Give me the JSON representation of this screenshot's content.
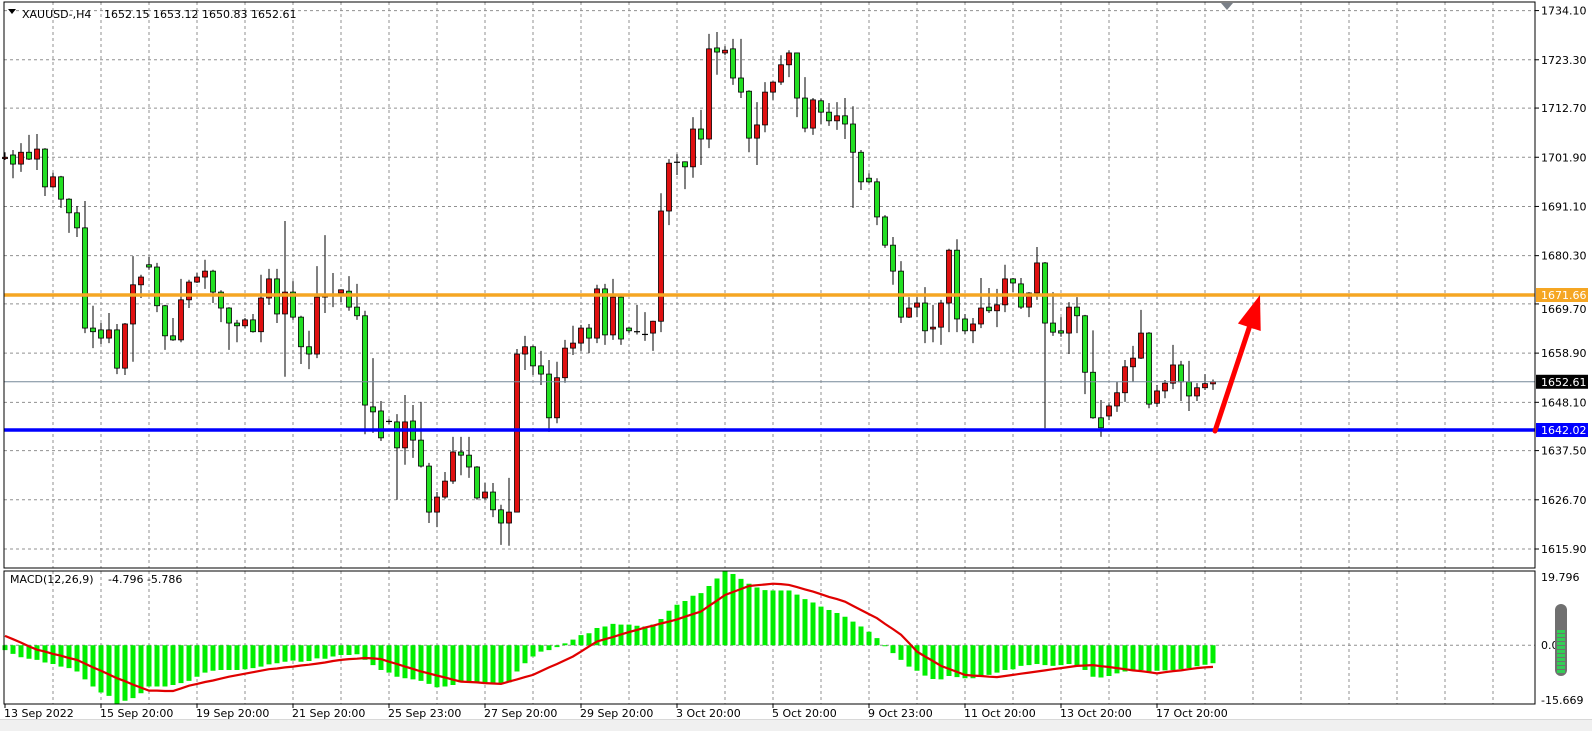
{
  "header": {
    "symbol": "XAUUSD-,H4",
    "ohlc_text": "1652.15 1653.12 1650.83 1652.61",
    "menu_icon": "triangle-down-icon"
  },
  "indicator": {
    "label": "MACD(12,26,9)",
    "values_text": "-4.796 -5.786",
    "axis_labels": [
      "19.796",
      "0.00",
      "-15.669"
    ],
    "range": [
      -15.669,
      19.796
    ]
  },
  "colors": {
    "bull": "#e01010",
    "bear": "#22e022",
    "histogram": "#00ee00",
    "signal": "#e00000",
    "resistance": "#f5a623",
    "support": "#0000ff",
    "bid": "#778899",
    "arrow": "#ff0000"
  },
  "levels": {
    "resistance": {
      "price": 1671.66,
      "label": "1671.66"
    },
    "support": {
      "price": 1642.02,
      "label": "1642.02"
    },
    "bid": {
      "price": 1652.61,
      "label": "1652.61"
    }
  },
  "arrow": {
    "from_price": 1642.02,
    "to_price": 1671.66
  },
  "chart_data": {
    "type": "candlestick",
    "price_ticks": [
      "1734.10",
      "1723.30",
      "1712.70",
      "1701.90",
      "1691.10",
      "1680.30",
      "1669.70",
      "1658.90",
      "1648.10",
      "1637.50",
      "1626.70",
      "1615.90"
    ],
    "ylim": [
      1615.9,
      1734.1
    ],
    "grid": true,
    "x_labels": [
      {
        "label": "13 Sep 2022",
        "bar": 0
      },
      {
        "label": "15 Sep 20:00",
        "bar": 12
      },
      {
        "label": "19 Sep 20:00",
        "bar": 24
      },
      {
        "label": "21 Sep 20:00",
        "bar": 36
      },
      {
        "label": "25 Sep 23:00",
        "bar": 48
      },
      {
        "label": "27 Sep 20:00",
        "bar": 60
      },
      {
        "label": "29 Sep 20:00",
        "bar": 72
      },
      {
        "label": "3 Oct 20:00",
        "bar": 84
      },
      {
        "label": "5 Oct 20:00",
        "bar": 96
      },
      {
        "label": "9 Oct 23:00",
        "bar": 108
      },
      {
        "label": "11 Oct 20:00",
        "bar": 120
      },
      {
        "label": "13 Oct 20:00",
        "bar": 132
      },
      {
        "label": "17 Oct 20:00",
        "bar": 144
      }
    ],
    "ohlc": [
      [
        1701.6,
        1703.0,
        1701.3,
        1701.9
      ],
      [
        1702.4,
        1703.5,
        1697.3,
        1700.4
      ],
      [
        1700.4,
        1705.0,
        1698.7,
        1703.0
      ],
      [
        1703.0,
        1706.8,
        1701.3,
        1701.5
      ],
      [
        1701.5,
        1707.0,
        1699.1,
        1703.7
      ],
      [
        1703.7,
        1703.9,
        1693.4,
        1695.4
      ],
      [
        1695.4,
        1698.5,
        1695.2,
        1697.6
      ],
      [
        1697.6,
        1697.8,
        1690.8,
        1692.7
      ],
      [
        1692.7,
        1692.9,
        1685.3,
        1689.7
      ],
      [
        1689.7,
        1691.2,
        1684.4,
        1686.4
      ],
      [
        1686.4,
        1692.3,
        1663.3,
        1664.4
      ],
      [
        1664.4,
        1669.3,
        1660.0,
        1663.6
      ],
      [
        1664.0,
        1665.5,
        1660.9,
        1662.2
      ],
      [
        1662.2,
        1667.7,
        1661.1,
        1664.0
      ],
      [
        1664.0,
        1665.3,
        1654.3,
        1655.6
      ],
      [
        1655.6,
        1665.5,
        1654.1,
        1665.3
      ],
      [
        1665.3,
        1680.2,
        1657.0,
        1673.9
      ],
      [
        1673.9,
        1676.1,
        1671.0,
        1675.6
      ],
      [
        1678.3,
        1680.0,
        1677.2,
        1677.8
      ],
      [
        1677.8,
        1678.7,
        1667.9,
        1669.3
      ],
      [
        1669.3,
        1669.5,
        1659.6,
        1662.7
      ],
      [
        1662.7,
        1666.6,
        1661.6,
        1661.8
      ],
      [
        1661.8,
        1675.2,
        1661.3,
        1670.6
      ],
      [
        1670.6,
        1675.0,
        1668.8,
        1674.5
      ],
      [
        1674.5,
        1676.5,
        1674.3,
        1675.6
      ],
      [
        1675.6,
        1679.4,
        1673.0,
        1676.9
      ],
      [
        1676.9,
        1677.2,
        1669.9,
        1672.3
      ],
      [
        1672.3,
        1672.7,
        1665.7,
        1668.8
      ],
      [
        1668.8,
        1669.0,
        1659.6,
        1665.5
      ],
      [
        1665.5,
        1666.2,
        1661.3,
        1664.9
      ],
      [
        1664.9,
        1666.6,
        1664.4,
        1666.2
      ],
      [
        1666.2,
        1667.5,
        1663.4,
        1663.6
      ],
      [
        1663.6,
        1676.1,
        1661.3,
        1671.0
      ],
      [
        1671.0,
        1677.4,
        1669.5,
        1675.2
      ],
      [
        1675.2,
        1677.4,
        1665.5,
        1667.5
      ],
      [
        1667.5,
        1687.9,
        1653.7,
        1672.3
      ],
      [
        1672.3,
        1674.7,
        1666.2,
        1666.8
      ],
      [
        1666.8,
        1667.1,
        1656.5,
        1660.3
      ],
      [
        1660.3,
        1663.8,
        1655.4,
        1658.7
      ],
      [
        1658.7,
        1678.0,
        1657.8,
        1671.2
      ],
      [
        1671.2,
        1684.8,
        1667.7,
        1671.6
      ],
      [
        1671.7,
        1676.5,
        1669.0,
        1671.6
      ],
      [
        1672.1,
        1672.9,
        1670.1,
        1672.8
      ],
      [
        1672.5,
        1675.8,
        1668.2,
        1669.0
      ],
      [
        1669.0,
        1674.1,
        1666.2,
        1667.1
      ],
      [
        1667.1,
        1668.2,
        1641.1,
        1647.5
      ],
      [
        1647.1,
        1657.8,
        1641.4,
        1646.0
      ],
      [
        1646.2,
        1648.4,
        1639.6,
        1640.3
      ],
      [
        1643.8,
        1644.4,
        1643.3,
        1643.9
      ],
      [
        1643.8,
        1645.5,
        1626.7,
        1638.1
      ],
      [
        1638.1,
        1649.7,
        1634.4,
        1643.8
      ],
      [
        1644.0,
        1647.5,
        1635.9,
        1639.8
      ],
      [
        1639.8,
        1648.2,
        1633.8,
        1634.1
      ],
      [
        1634.1,
        1634.8,
        1621.6,
        1624.0
      ],
      [
        1624.0,
        1628.4,
        1620.7,
        1627.3
      ],
      [
        1627.3,
        1632.8,
        1626.9,
        1630.8
      ],
      [
        1630.8,
        1640.5,
        1630.2,
        1637.2
      ],
      [
        1637.2,
        1640.5,
        1632.1,
        1636.5
      ],
      [
        1636.5,
        1640.5,
        1631.5,
        1633.9
      ],
      [
        1633.9,
        1634.1,
        1626.7,
        1627.1
      ],
      [
        1627.1,
        1630.4,
        1626.8,
        1628.4
      ],
      [
        1628.4,
        1630.4,
        1622.9,
        1624.5
      ],
      [
        1624.5,
        1625.6,
        1616.8,
        1621.6
      ],
      [
        1621.6,
        1631.5,
        1616.6,
        1624.0
      ],
      [
        1624.0,
        1659.8,
        1623.9,
        1658.7
      ],
      [
        1658.7,
        1662.7,
        1655.2,
        1660.3
      ],
      [
        1660.3,
        1660.6,
        1654.1,
        1656.1
      ],
      [
        1656.1,
        1659.4,
        1651.9,
        1654.3
      ],
      [
        1654.3,
        1657.4,
        1641.6,
        1644.7
      ],
      [
        1644.7,
        1657.0,
        1643.5,
        1653.5
      ],
      [
        1653.5,
        1661.8,
        1652.4,
        1660.0
      ],
      [
        1660.0,
        1664.9,
        1658.5,
        1661.1
      ],
      [
        1661.1,
        1665.1,
        1659.4,
        1664.4
      ],
      [
        1664.4,
        1665.3,
        1658.9,
        1662.2
      ],
      [
        1662.2,
        1673.9,
        1661.1,
        1673.0
      ],
      [
        1673.0,
        1674.1,
        1660.7,
        1662.9
      ],
      [
        1662.9,
        1675.2,
        1661.8,
        1671.2
      ],
      [
        1671.2,
        1671.6,
        1660.7,
        1662.0
      ],
      [
        1664.4,
        1664.6,
        1663.3,
        1663.8
      ],
      [
        1663.6,
        1669.5,
        1663.0,
        1663.6
      ],
      [
        1663.0,
        1667.9,
        1661.6,
        1663.0
      ],
      [
        1663.3,
        1666.0,
        1659.4,
        1665.9
      ],
      [
        1665.9,
        1694.0,
        1663.5,
        1690.1
      ],
      [
        1690.1,
        1701.5,
        1687.0,
        1700.6
      ],
      [
        1700.8,
        1702.6,
        1698.0,
        1700.8
      ],
      [
        1700.9,
        1701.0,
        1694.9,
        1699.8
      ],
      [
        1699.8,
        1710.7,
        1697.4,
        1708.1
      ],
      [
        1708.1,
        1712.3,
        1700.2,
        1705.9
      ],
      [
        1705.9,
        1729.0,
        1703.9,
        1725.7
      ],
      [
        1725.9,
        1729.4,
        1720.0,
        1725.0
      ],
      [
        1724.8,
        1726.3,
        1724.3,
        1725.4
      ],
      [
        1725.7,
        1727.9,
        1717.8,
        1719.3
      ],
      [
        1719.3,
        1727.9,
        1714.9,
        1716.2
      ],
      [
        1716.4,
        1716.6,
        1703.0,
        1706.1
      ],
      [
        1706.1,
        1714.0,
        1700.2,
        1709.0
      ],
      [
        1709.0,
        1718.4,
        1707.4,
        1716.2
      ],
      [
        1716.2,
        1718.6,
        1714.5,
        1718.4
      ],
      [
        1718.4,
        1724.3,
        1717.8,
        1722.2
      ],
      [
        1722.2,
        1725.4,
        1719.5,
        1724.8
      ],
      [
        1724.8,
        1724.9,
        1710.7,
        1714.9
      ],
      [
        1714.9,
        1719.5,
        1707.4,
        1708.3
      ],
      [
        1708.3,
        1714.9,
        1706.8,
        1714.5
      ],
      [
        1714.3,
        1714.8,
        1709.2,
        1711.8
      ],
      [
        1711.8,
        1713.8,
        1708.8,
        1709.9
      ],
      [
        1709.9,
        1714.0,
        1707.9,
        1711.0
      ],
      [
        1711.0,
        1714.9,
        1705.9,
        1709.2
      ],
      [
        1709.2,
        1713.1,
        1690.8,
        1703.0
      ],
      [
        1703.0,
        1703.5,
        1694.7,
        1696.5
      ],
      [
        1697.3,
        1698.4,
        1696.2,
        1696.5
      ],
      [
        1696.5,
        1697.3,
        1687.0,
        1688.8
      ],
      [
        1688.8,
        1689.2,
        1682.0,
        1682.6
      ],
      [
        1682.6,
        1684.4,
        1673.9,
        1676.9
      ],
      [
        1676.9,
        1679.1,
        1665.5,
        1666.8
      ],
      [
        1666.8,
        1671.2,
        1666.6,
        1668.8
      ],
      [
        1669.0,
        1671.2,
        1666.8,
        1669.9
      ],
      [
        1669.9,
        1673.4,
        1661.1,
        1663.8
      ],
      [
        1664.2,
        1669.5,
        1661.3,
        1664.6
      ],
      [
        1664.6,
        1670.6,
        1660.7,
        1669.9
      ],
      [
        1669.9,
        1681.8,
        1663.5,
        1681.5
      ],
      [
        1681.5,
        1683.9,
        1663.5,
        1666.4
      ],
      [
        1666.4,
        1667.5,
        1663.1,
        1663.8
      ],
      [
        1663.8,
        1666.6,
        1661.1,
        1665.3
      ],
      [
        1665.3,
        1675.4,
        1664.4,
        1668.8
      ],
      [
        1669.0,
        1673.2,
        1667.7,
        1668.2
      ],
      [
        1668.2,
        1673.0,
        1664.6,
        1669.5
      ],
      [
        1669.5,
        1678.3,
        1667.9,
        1675.2
      ],
      [
        1675.2,
        1675.4,
        1672.3,
        1674.3
      ],
      [
        1674.1,
        1675.4,
        1668.6,
        1669.0
      ],
      [
        1669.0,
        1672.3,
        1666.8,
        1672.1
      ],
      [
        1672.1,
        1682.2,
        1670.6,
        1678.7
      ],
      [
        1678.7,
        1678.9,
        1642.4,
        1665.5
      ],
      [
        1665.5,
        1672.3,
        1662.7,
        1663.5
      ],
      [
        1663.8,
        1666.8,
        1662.5,
        1663.3
      ],
      [
        1663.3,
        1670.1,
        1658.7,
        1669.0
      ],
      [
        1669.0,
        1671.2,
        1663.3,
        1667.1
      ],
      [
        1667.1,
        1667.3,
        1649.9,
        1654.7
      ],
      [
        1654.7,
        1663.9,
        1644.5,
        1644.7
      ],
      [
        1644.7,
        1648.6,
        1640.5,
        1642.5
      ],
      [
        1645.1,
        1647.9,
        1644.2,
        1647.3
      ],
      [
        1647.3,
        1652.6,
        1646.0,
        1650.2
      ],
      [
        1650.2,
        1657.4,
        1648.2,
        1655.9
      ],
      [
        1655.9,
        1660.5,
        1652.6,
        1657.8
      ],
      [
        1657.8,
        1668.4,
        1657.6,
        1663.3
      ],
      [
        1663.3,
        1663.5,
        1646.8,
        1647.7
      ],
      [
        1647.9,
        1651.9,
        1647.1,
        1650.6
      ],
      [
        1650.6,
        1653.0,
        1649.0,
        1652.3
      ],
      [
        1652.3,
        1660.7,
        1651.0,
        1656.3
      ],
      [
        1656.3,
        1657.2,
        1648.4,
        1652.6
      ],
      [
        1652.6,
        1657.2,
        1646.2,
        1649.5
      ],
      [
        1649.5,
        1652.3,
        1648.4,
        1651.3
      ],
      [
        1651.3,
        1654.3,
        1650.8,
        1652.2
      ],
      [
        1652.15,
        1653.12,
        1650.83,
        1652.61
      ]
    ],
    "macd_histogram": [
      -1.3,
      -2.3,
      -3.2,
      -3.6,
      -3.9,
      -4.6,
      -5.0,
      -5.7,
      -6.1,
      -7.0,
      -9.1,
      -11.0,
      -12.6,
      -13.5,
      -15.6,
      -14.8,
      -14.1,
      -12.8,
      -11.0,
      -11.0,
      -11.0,
      -10.6,
      -10.1,
      -9.5,
      -8.4,
      -7.3,
      -6.8,
      -6.6,
      -6.6,
      -6.6,
      -6.4,
      -6.1,
      -5.7,
      -5.1,
      -4.8,
      -4.4,
      -4.1,
      -4.4,
      -4.2,
      -3.5,
      -3.6,
      -3.0,
      -2.6,
      -2.6,
      -2.4,
      -3.9,
      -5.3,
      -6.6,
      -7.3,
      -8.4,
      -8.8,
      -9.1,
      -9.5,
      -10.3,
      -11.2,
      -11.0,
      -10.6,
      -9.9,
      -9.8,
      -9.8,
      -10.1,
      -10.1,
      -10.1,
      -9.9,
      -7.0,
      -4.8,
      -3.0,
      -1.7,
      -1.3,
      -0.5,
      0.5,
      1.5,
      2.7,
      3.2,
      4.6,
      5.0,
      5.7,
      5.5,
      5.5,
      5.2,
      5.0,
      5.5,
      7.0,
      9.2,
      10.8,
      11.8,
      13.2,
      13.9,
      15.8,
      17.8,
      19.796,
      19.0,
      17.7,
      16.4,
      15.4,
      14.7,
      14.6,
      14.6,
      14.6,
      13.5,
      12.3,
      11.4,
      10.3,
      9.4,
      8.6,
      7.6,
      6.3,
      5.0,
      3.6,
      1.9,
      -0.2,
      -2.1,
      -3.9,
      -5.7,
      -6.8,
      -8.1,
      -9.0,
      -9.1,
      -8.2,
      -8.5,
      -8.8,
      -8.8,
      -8.2,
      -7.9,
      -7.3,
      -6.6,
      -6.4,
      -5.5,
      -5.3,
      -5.0,
      -5.3,
      -5.5,
      -5.3,
      -5.0,
      -5.5,
      -6.6,
      -8.4,
      -8.6,
      -8.2,
      -7.5,
      -7.0,
      -6.8,
      -6.6,
      -7.0,
      -6.8,
      -6.7,
      -6.6,
      -6.4,
      -6.1,
      -5.6,
      -5.2,
      -4.796
    ],
    "macd_signal": [
      2.5,
      1.6,
      0.7,
      -0.3,
      -1.2,
      -1.7,
      -2.3,
      -2.8,
      -3.4,
      -3.9,
      -4.9,
      -5.9,
      -6.8,
      -7.8,
      -8.8,
      -9.6,
      -10.5,
      -11.3,
      -12.1,
      -12.1,
      -12.2,
      -12.2,
      -11.5,
      -10.8,
      -10.3,
      -9.8,
      -9.4,
      -8.9,
      -8.4,
      -8.0,
      -7.6,
      -7.2,
      -6.8,
      -6.4,
      -6.2,
      -5.9,
      -5.7,
      -5.4,
      -5.2,
      -4.9,
      -4.6,
      -4.2,
      -3.9,
      -3.7,
      -3.6,
      -3.4,
      -3.5,
      -3.7,
      -4.4,
      -5.0,
      -5.7,
      -6.3,
      -7.0,
      -7.5,
      -8.1,
      -8.6,
      -9.2,
      -9.7,
      -9.8,
      -9.9,
      -10.1,
      -10.2,
      -10.3,
      -9.7,
      -9.1,
      -8.5,
      -7.9,
      -6.9,
      -5.9,
      -5.0,
      -4.0,
      -3.0,
      -1.7,
      -0.3,
      1.0,
      1.6,
      2.2,
      2.9,
      3.5,
      4.1,
      4.7,
      5.2,
      5.8,
      6.3,
      6.9,
      7.6,
      8.3,
      9.0,
      10.5,
      11.9,
      13.4,
      14.2,
      15.0,
      15.8,
      16.0,
      16.2,
      16.4,
      16.3,
      16.1,
      15.5,
      14.9,
      14.3,
      13.6,
      12.9,
      12.3,
      11.6,
      10.5,
      9.4,
      8.3,
      7.2,
      5.7,
      4.3,
      2.8,
      0.6,
      -1.7,
      -3.0,
      -4.2,
      -5.5,
      -6.3,
      -7.1,
      -7.9,
      -8.1,
      -8.2,
      -8.4,
      -8.5,
      -8.2,
      -7.9,
      -7.6,
      -7.3,
      -7.0,
      -6.7,
      -6.4,
      -6.1,
      -5.8,
      -5.5,
      -5.4,
      -5.3,
      -5.6,
      -5.8,
      -6.1,
      -6.4,
      -6.7,
      -6.9,
      -7.2,
      -7.5,
      -7.2,
      -6.9,
      -6.7,
      -6.4,
      -6.1,
      -5.9,
      -5.786
    ]
  }
}
